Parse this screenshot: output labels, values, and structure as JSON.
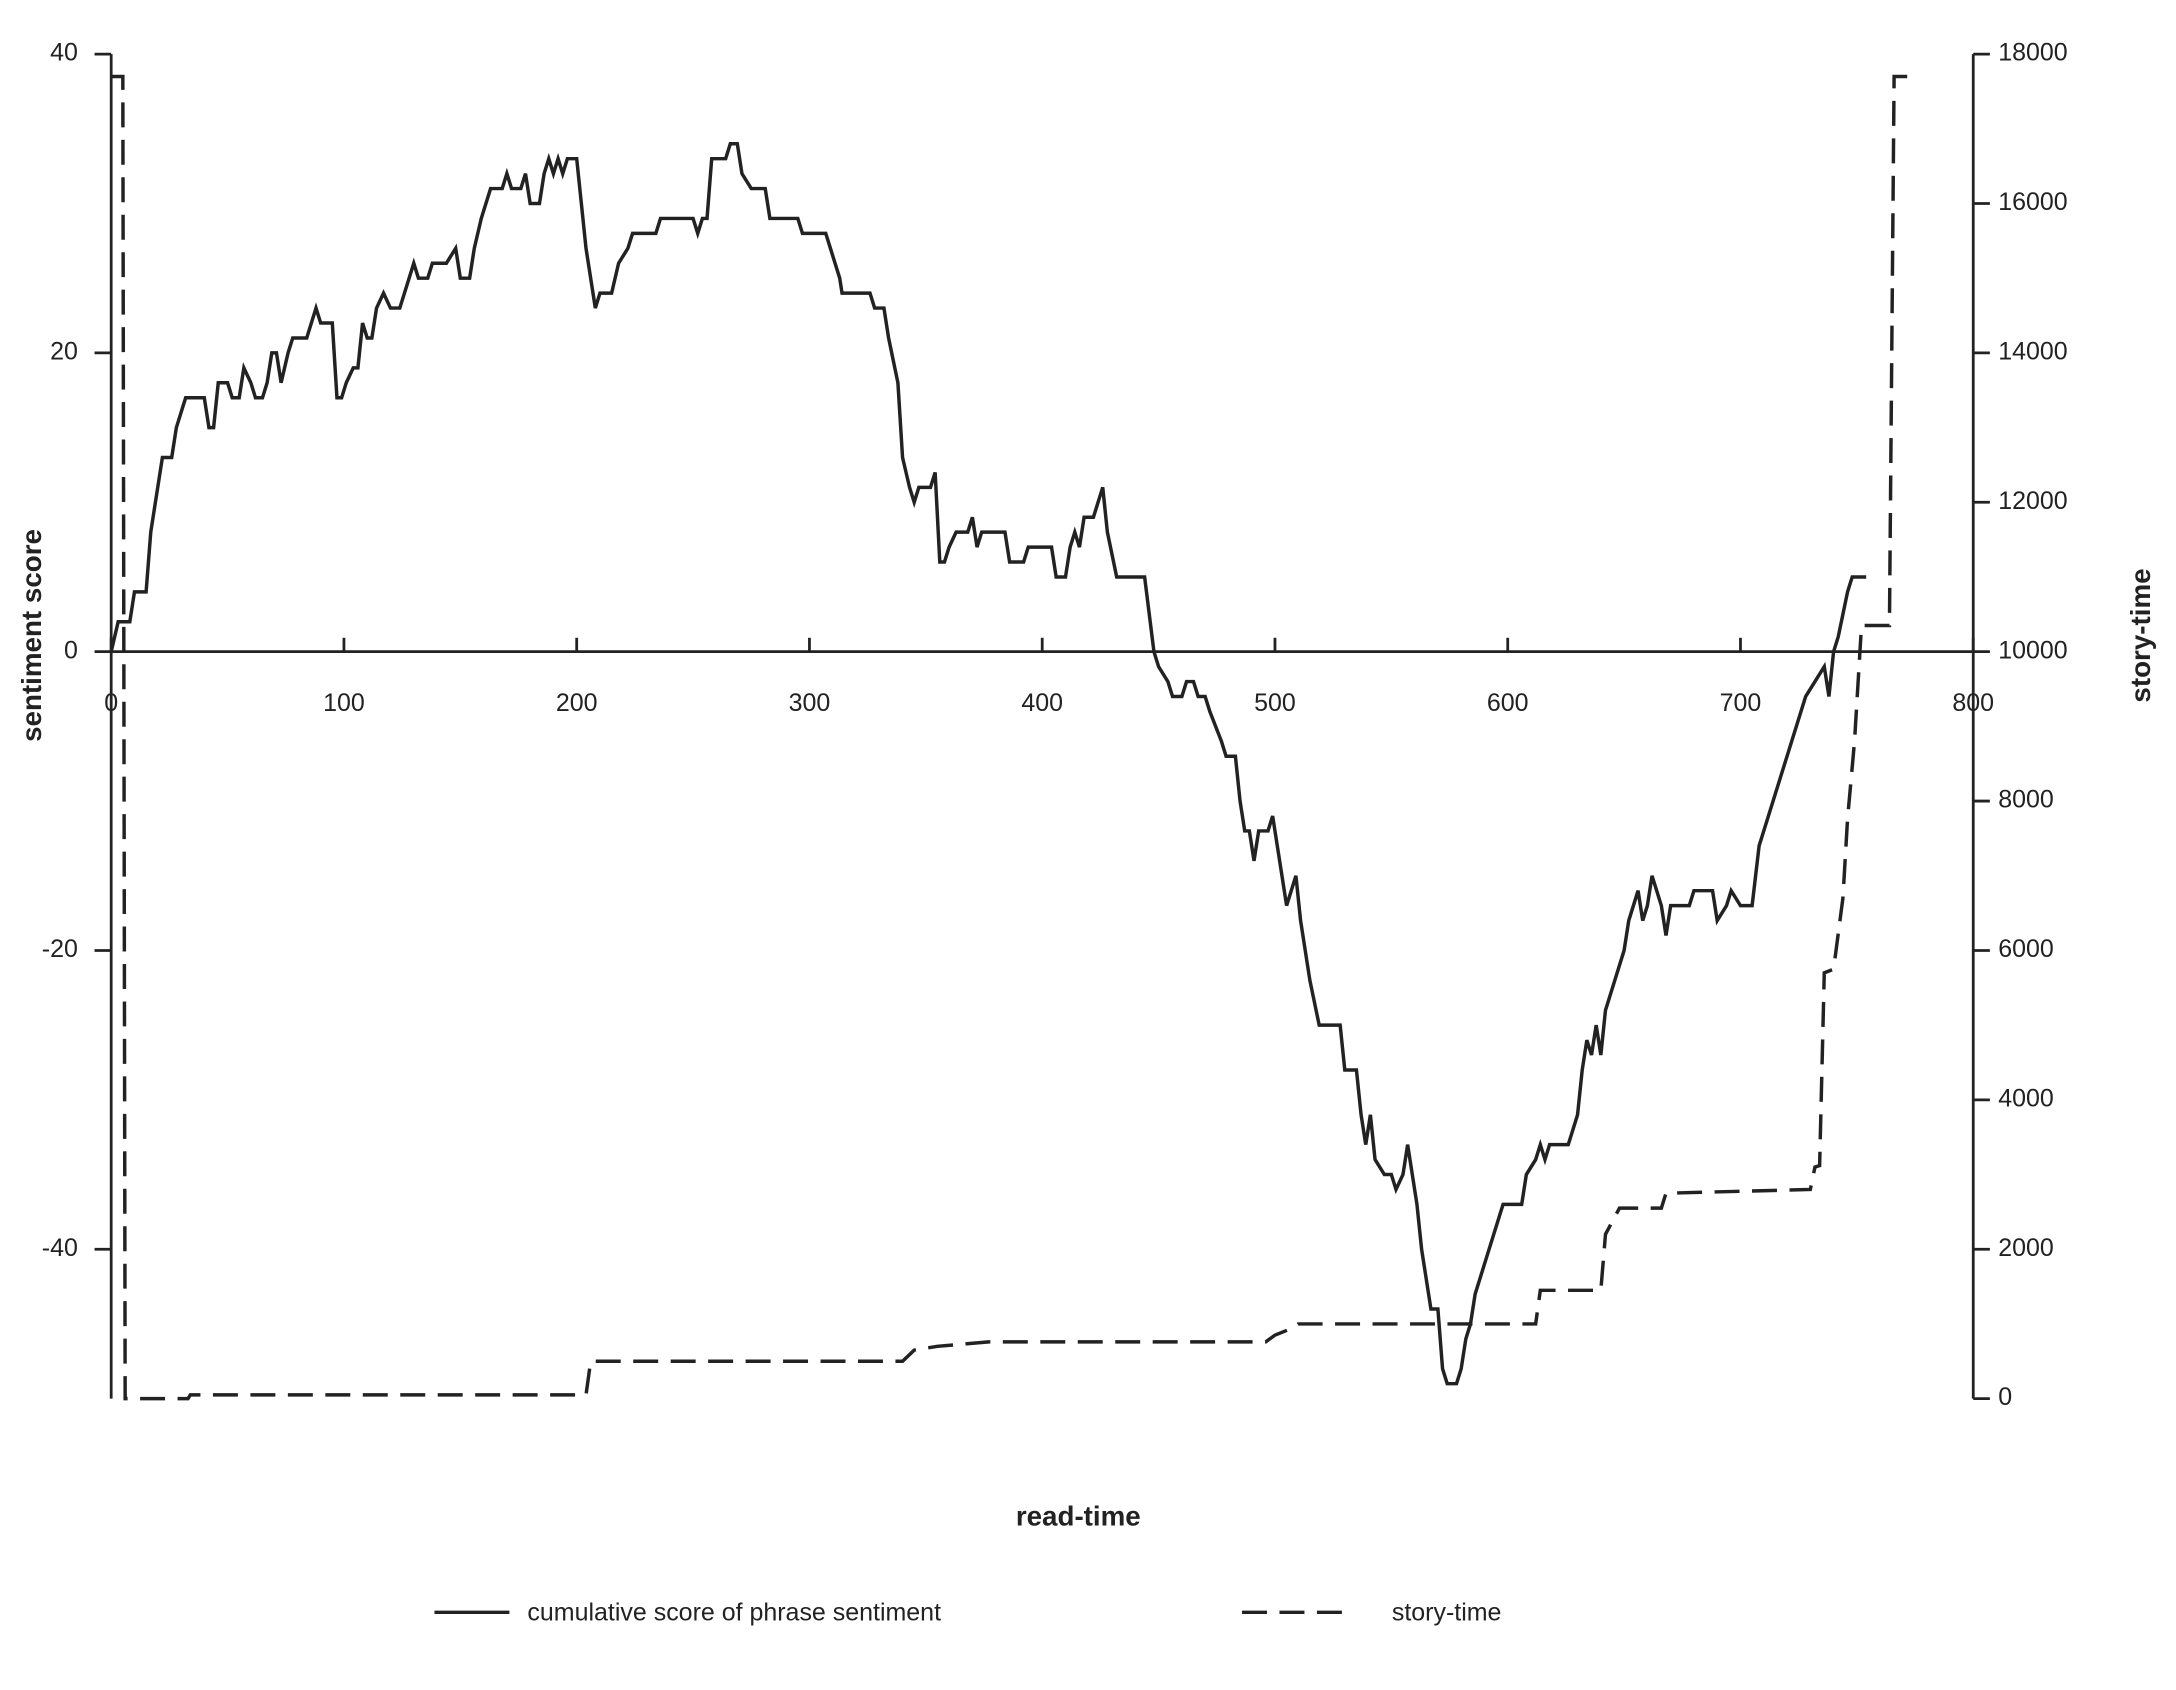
{
  "chart_data": {
    "type": "line",
    "x_label": "read-time",
    "y_label": "sentiment score",
    "y2_label": "story-time",
    "xlim": [
      0,
      800
    ],
    "xticks": [
      0,
      100,
      200,
      300,
      400,
      500,
      600,
      700,
      800
    ],
    "ylim": [
      -50,
      40
    ],
    "yticks": [
      -40,
      -20,
      0,
      20,
      40
    ],
    "y2lim": [
      0,
      18000
    ],
    "y2ticks": [
      0,
      2000,
      4000,
      6000,
      8000,
      10000,
      12000,
      14000,
      16000,
      18000
    ],
    "series": [
      {
        "name": "cumulative score of phrase sentiment",
        "color": "#222222",
        "dash": false,
        "x": [
          0,
          3,
          8,
          10,
          15,
          17,
          20,
          22,
          26,
          28,
          30,
          32,
          40,
          42,
          44,
          46,
          50,
          52,
          55,
          57,
          60,
          62,
          65,
          67,
          69,
          71,
          73,
          76,
          78,
          84,
          86,
          88,
          90,
          95,
          97,
          99,
          101,
          104,
          106,
          108,
          110,
          112,
          114,
          117,
          120,
          124,
          126,
          130,
          132,
          136,
          138,
          144,
          148,
          150,
          154,
          156,
          159,
          161,
          163,
          168,
          170,
          172,
          176,
          178,
          180,
          184,
          186,
          188,
          190,
          192,
          194,
          196,
          200,
          202,
          204,
          206,
          208,
          210,
          215,
          218,
          222,
          224,
          234,
          236,
          250,
          252,
          254,
          256,
          258,
          264,
          266,
          269,
          271,
          275,
          281,
          283,
          295,
          297,
          307,
          309,
          313,
          314,
          326,
          328,
          332,
          334,
          338,
          340,
          343,
          345,
          347,
          352,
          354,
          356,
          358,
          360,
          363,
          368,
          370,
          372,
          374,
          384,
          386,
          392,
          394,
          404,
          406,
          410,
          412,
          414,
          416,
          418,
          422,
          424,
          426,
          428,
          432,
          444,
          448,
          450,
          454,
          456,
          460,
          462,
          465,
          467,
          470,
          472,
          477,
          479,
          483,
          485,
          487,
          489,
          491,
          493,
          497,
          499,
          501,
          503,
          505,
          507,
          509,
          511,
          515,
          519,
          528,
          530,
          535,
          537,
          539,
          541,
          543,
          547,
          550,
          552,
          555,
          557,
          559,
          561,
          563,
          565,
          567,
          570,
          572,
          574,
          578,
          580,
          582,
          584,
          586,
          590,
          594,
          598,
          606,
          608,
          612,
          614,
          616,
          618,
          626,
          628,
          630,
          632,
          634,
          636,
          638,
          640,
          642,
          646,
          650,
          652,
          656,
          658,
          660,
          662,
          666,
          668,
          670,
          678,
          680,
          688,
          690,
          694,
          696,
          700,
          705,
          708,
          712,
          716,
          720,
          724,
          728,
          732,
          736,
          738,
          740,
          742,
          746,
          748,
          754
        ],
        "values": [
          0,
          2,
          2,
          4,
          4,
          8,
          11,
          13,
          13,
          15,
          16,
          17,
          17,
          15,
          15,
          18,
          18,
          17,
          17,
          19,
          18,
          17,
          17,
          18,
          20,
          20,
          18,
          20,
          21,
          21,
          22,
          23,
          22,
          22,
          17,
          17,
          18,
          19,
          19,
          22,
          21,
          21,
          23,
          24,
          23,
          23,
          24,
          26,
          25,
          25,
          26,
          26,
          27,
          25,
          25,
          27,
          29,
          30,
          31,
          31,
          32,
          31,
          31,
          32,
          30,
          30,
          32,
          33,
          32,
          33,
          32,
          33,
          33,
          30,
          27,
          25,
          23,
          24,
          24,
          26,
          27,
          28,
          28,
          29,
          29,
          28,
          29,
          29,
          33,
          33,
          34,
          34,
          32,
          31,
          31,
          29,
          29,
          28,
          28,
          27,
          25,
          24,
          24,
          23,
          23,
          21,
          18,
          13,
          11,
          10,
          11,
          11,
          12,
          6,
          6,
          7,
          8,
          8,
          9,
          7,
          8,
          8,
          6,
          6,
          7,
          7,
          5,
          5,
          7,
          8,
          7,
          9,
          9,
          10,
          11,
          8,
          5,
          5,
          0,
          -1,
          -2,
          -3,
          -3,
          -2,
          -2,
          -3,
          -3,
          -4,
          -6,
          -7,
          -7,
          -10,
          -12,
          -12,
          -14,
          -12,
          -12,
          -11,
          -13,
          -15,
          -17,
          -16,
          -15,
          -18,
          -22,
          -25,
          -25,
          -28,
          -28,
          -31,
          -33,
          -31,
          -34,
          -35,
          -35,
          -36,
          -35,
          -33,
          -35,
          -37,
          -40,
          -42,
          -44,
          -44,
          -48,
          -49,
          -49,
          -48,
          -46,
          -45,
          -43,
          -41,
          -39,
          -37,
          -37,
          -35,
          -34,
          -33,
          -34,
          -33,
          -33,
          -32,
          -31,
          -28,
          -26,
          -27,
          -25,
          -27,
          -24,
          -22,
          -20,
          -18,
          -16,
          -18,
          -17,
          -15,
          -17,
          -19,
          -17,
          -17,
          -16,
          -16,
          -18,
          -17,
          -16,
          -17,
          -17,
          -13,
          -11,
          -9,
          -7,
          -5,
          -3,
          -2,
          -1,
          -3,
          0,
          1,
          4,
          5,
          5
        ]
      },
      {
        "name": "story-time",
        "color": "#222222",
        "dash": true,
        "axis": "y2",
        "x": [
          0,
          5,
          6,
          33,
          34,
          204,
          206,
          340,
          345,
          355,
          377,
          496,
          500,
          508,
          510,
          612,
          614,
          640,
          642,
          648,
          666,
          668,
          730,
          732,
          734,
          736,
          740,
          744,
          746,
          749,
          752,
          764,
          766,
          772
        ],
        "values": [
          17700,
          17700,
          0,
          0,
          50,
          50,
          500,
          500,
          650,
          700,
          760,
          760,
          850,
          950,
          1000,
          1000,
          1450,
          1450,
          2200,
          2550,
          2550,
          2750,
          2800,
          3100,
          3120,
          5700,
          5750,
          6700,
          7760,
          8800,
          10350,
          10350,
          17700,
          17700
        ]
      }
    ]
  }
}
